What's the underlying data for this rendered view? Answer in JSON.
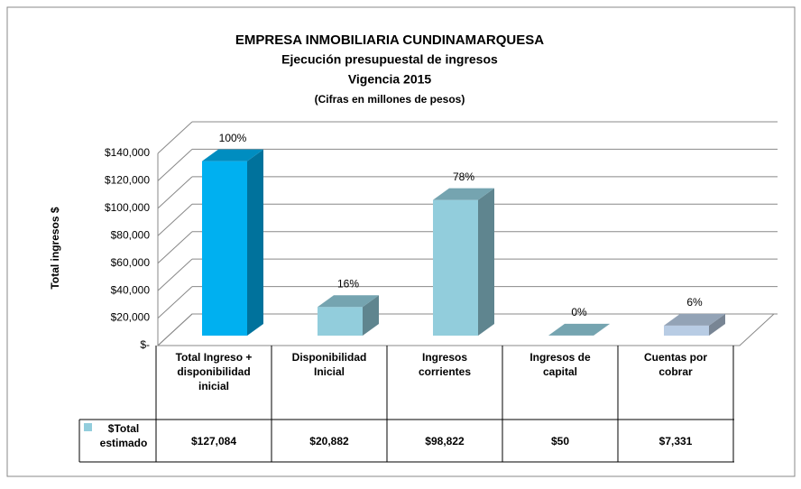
{
  "chart_data": {
    "type": "bar3d",
    "title": "EMPRESA INMOBILIARIA CUNDINAMARQUESA",
    "subtitle": "Ejecución presupuestal de ingresos",
    "subtitle2": "Vigencia 2015",
    "note": "(Cifras en millones de pesos)",
    "y_label": "Total ingresos $",
    "categories": [
      "Total Ingreso + disponibilidad inicial",
      "Disponibilidad Inicial",
      "Ingresos corrientes",
      "Ingresos de capital",
      "Cuentas por cobrar"
    ],
    "series": [
      {
        "name": "$Total estimado",
        "color": "#92cddc",
        "colors": [
          "#00b0f0",
          "#92cddc",
          "#92cddc",
          "#92cddc",
          "#b8cce4"
        ],
        "values": [
          127084,
          20882,
          98822,
          50,
          7331
        ],
        "value_labels": [
          "$127,084",
          "$20,882",
          "$98,822",
          "$50",
          "$7,331"
        ],
        "annotations": [
          "100%",
          "16%",
          "78%",
          "0%",
          "6%"
        ]
      }
    ],
    "ylim": [
      0,
      140000
    ],
    "yticks": [
      {
        "value": 0,
        "label": "$-"
      },
      {
        "value": 20000,
        "label": "$20,000"
      },
      {
        "value": 40000,
        "label": "$40,000"
      },
      {
        "value": 60000,
        "label": "$60,000"
      },
      {
        "value": 80000,
        "label": "$80,000"
      },
      {
        "value": 100000,
        "label": "$100,000"
      },
      {
        "value": 120000,
        "label": "$120,000"
      },
      {
        "value": 140000,
        "label": "$140,000"
      }
    ],
    "grid": true,
    "data_table": true
  }
}
